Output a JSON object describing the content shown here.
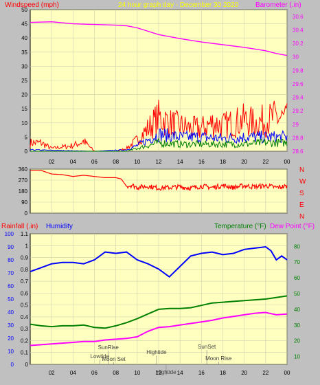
{
  "colors": {
    "page_bg": "#c0c0c0",
    "plot_bg": "#ffffc0",
    "grid": "#cfcfb0",
    "red": "#ff0000",
    "blue": "#0000ff",
    "green": "#008000",
    "magenta": "#ff00ff",
    "yellow": "#ffff00",
    "baro_axis": "#ff00ff"
  },
  "header": {
    "left_label": "Windspeed (mph)",
    "center_label": "24 hour graph day - December 30 2020",
    "right_label": "Barometer (.in)"
  },
  "bottom_header": {
    "rain_label": "Rainfall (.in)",
    "humidity_label": "Humidity",
    "temp_label": "Temperature (°F)",
    "dew_label": "Dew Point (°F)"
  },
  "x_ticks": [
    "02",
    "04",
    "06",
    "08",
    "10",
    "12",
    "14",
    "16",
    "18",
    "20",
    "22",
    "00"
  ],
  "chart_data": [
    {
      "type": "line",
      "name": "wind-barometer",
      "x_hours": [
        0,
        24
      ],
      "y_left": {
        "label": "Windspeed (mph)",
        "range": [
          0,
          50
        ],
        "ticks": [
          0,
          5,
          10,
          15,
          20,
          25,
          30,
          35,
          40,
          45,
          50
        ]
      },
      "y_right": {
        "label": "Barometer (.in)",
        "range": [
          28.6,
          30.7
        ],
        "ticks": [
          "28.6",
          "28.8",
          "29",
          "29.2",
          "29.4",
          "29.6",
          "29.8",
          "30",
          "30.2",
          "30.4",
          "30.6"
        ]
      },
      "series": [
        {
          "name": "Barometer",
          "color": "#ff00ff",
          "axis": "right",
          "points": [
            [
              0,
              30.51
            ],
            [
              2,
              30.52
            ],
            [
              4,
              30.49
            ],
            [
              6,
              30.48
            ],
            [
              8,
              30.47
            ],
            [
              9,
              30.46
            ],
            [
              10,
              30.43
            ],
            [
              12,
              30.33
            ],
            [
              14,
              30.27
            ],
            [
              16,
              30.22
            ],
            [
              18,
              30.18
            ],
            [
              20,
              30.14
            ],
            [
              22,
              30.09
            ],
            [
              23,
              30.05
            ],
            [
              24,
              30.02
            ]
          ]
        },
        {
          "name": "Gust",
          "color": "#ff0000",
          "axis": "left",
          "points": [
            [
              0,
              3
            ],
            [
              1,
              3
            ],
            [
              2,
              1
            ],
            [
              3,
              1.5
            ],
            [
              4,
              2
            ],
            [
              5,
              3.5
            ],
            [
              6,
              0
            ],
            [
              8,
              0
            ],
            [
              9,
              1
            ],
            [
              10,
              4
            ],
            [
              11,
              8
            ],
            [
              12,
              12
            ],
            [
              13,
              10
            ],
            [
              14,
              9
            ],
            [
              15,
              8
            ],
            [
              16,
              8
            ],
            [
              17,
              10
            ],
            [
              18,
              9
            ],
            [
              19,
              10
            ],
            [
              20,
              11
            ],
            [
              21,
              10
            ],
            [
              22,
              11
            ],
            [
              23,
              12
            ],
            [
              24,
              11
            ]
          ]
        },
        {
          "name": "Wind",
          "color": "#0000ff",
          "axis": "left",
          "points": [
            [
              0,
              0.5
            ],
            [
              6,
              0
            ],
            [
              9,
              0.5
            ],
            [
              10,
              2
            ],
            [
              11,
              4
            ],
            [
              12,
              6
            ],
            [
              13,
              5.5
            ],
            [
              14,
              5
            ],
            [
              16,
              5
            ],
            [
              18,
              4.5
            ],
            [
              20,
              5
            ],
            [
              22,
              5
            ],
            [
              24,
              5
            ]
          ]
        },
        {
          "name": "Avg",
          "color": "#008000",
          "axis": "left",
          "points": [
            [
              0,
              0
            ],
            [
              9,
              0
            ],
            [
              10,
              1
            ],
            [
              11,
              2
            ],
            [
              12,
              3
            ],
            [
              14,
              2.5
            ],
            [
              16,
              2.5
            ],
            [
              18,
              2.5
            ],
            [
              20,
              2.5
            ],
            [
              22,
              3
            ],
            [
              24,
              3
            ]
          ]
        }
      ]
    },
    {
      "type": "line",
      "name": "wind-direction",
      "x_hours": [
        0,
        24
      ],
      "y_left": {
        "range": [
          0,
          360
        ],
        "ticks": [
          "0",
          "90",
          "180",
          "270",
          "360"
        ]
      },
      "y_right_labels": [
        "N",
        "W",
        "S",
        "E",
        "N"
      ],
      "series": [
        {
          "name": "Direction",
          "color": "#ff0000",
          "points": [
            [
              0,
              350
            ],
            [
              1,
              350
            ],
            [
              2,
              320
            ],
            [
              3,
              315
            ],
            [
              4,
              300
            ],
            [
              5,
              310
            ],
            [
              6,
              300
            ],
            [
              7,
              290
            ],
            [
              8,
              290
            ],
            [
              8.5,
              280
            ],
            [
              9,
              220
            ],
            [
              9.5,
              230
            ],
            [
              10,
              210
            ],
            [
              11,
              220
            ],
            [
              12,
              205
            ],
            [
              13,
              210
            ],
            [
              14,
              215
            ],
            [
              15,
              205
            ],
            [
              16,
              220
            ],
            [
              17,
              210
            ],
            [
              18,
              225
            ],
            [
              19,
              210
            ],
            [
              20,
              225
            ],
            [
              21,
              215
            ],
            [
              22,
              225
            ],
            [
              23,
              210
            ],
            [
              24,
              220
            ]
          ]
        }
      ]
    },
    {
      "type": "line",
      "name": "humidity-temperature",
      "x_hours": [
        0,
        24
      ],
      "y_far_left": {
        "label": "Humidity",
        "range": [
          0,
          100
        ],
        "ticks": [
          0,
          10,
          20,
          30,
          40,
          50,
          60,
          70,
          80,
          90,
          100
        ]
      },
      "y_left": {
        "label": "Rainfall (.in)",
        "range": [
          0,
          1.1
        ],
        "ticks": [
          "0",
          "0.1",
          "0.2",
          "0.3",
          "0.4",
          "0.5",
          "0.6",
          "0.7",
          "0.8",
          "0.9",
          "1",
          "1.1"
        ]
      },
      "y_right": {
        "label": "Temperature (°F)",
        "range": [
          5,
          88
        ],
        "ticks": [
          10,
          20,
          30,
          40,
          50,
          60,
          70,
          80
        ]
      },
      "series": [
        {
          "name": "Humidity",
          "color": "#0000ff",
          "axis": "far_left",
          "points": [
            [
              0,
              71
            ],
            [
              1,
              74
            ],
            [
              2,
              77
            ],
            [
              3,
              78
            ],
            [
              4,
              78
            ],
            [
              5,
              77
            ],
            [
              6,
              80
            ],
            [
              7,
              86
            ],
            [
              8,
              85
            ],
            [
              9,
              86
            ],
            [
              10,
              80
            ],
            [
              11,
              77
            ],
            [
              12,
              73
            ],
            [
              13,
              67
            ],
            [
              14,
              75
            ],
            [
              15,
              83
            ],
            [
              16,
              85
            ],
            [
              17,
              86
            ],
            [
              18,
              84
            ],
            [
              19,
              85
            ],
            [
              20,
              88
            ],
            [
              21,
              89
            ],
            [
              22,
              90
            ],
            [
              22.5,
              87
            ],
            [
              23,
              80
            ],
            [
              23.5,
              83
            ],
            [
              24,
              80
            ]
          ]
        },
        {
          "name": "Temperature",
          "color": "#008000",
          "axis": "right",
          "points": [
            [
              0,
              30.5
            ],
            [
              1,
              29.5
            ],
            [
              2,
              29
            ],
            [
              3,
              29.5
            ],
            [
              4,
              29.5
            ],
            [
              5,
              30
            ],
            [
              6,
              28.5
            ],
            [
              7,
              28
            ],
            [
              8,
              29.5
            ],
            [
              9,
              31.5
            ],
            [
              10,
              34
            ],
            [
              11,
              37
            ],
            [
              12,
              40
            ],
            [
              13,
              40.5
            ],
            [
              14,
              40.5
            ],
            [
              15,
              41
            ],
            [
              16,
              42.5
            ],
            [
              17,
              44
            ],
            [
              18,
              44.5
            ],
            [
              19,
              45
            ],
            [
              20,
              45.5
            ],
            [
              21,
              46
            ],
            [
              22,
              46.5
            ],
            [
              23,
              47.5
            ],
            [
              24,
              48.5
            ]
          ]
        },
        {
          "name": "Dew Point",
          "color": "#ff00ff",
          "axis": "right",
          "points": [
            [
              0,
              17
            ],
            [
              1,
              17.5
            ],
            [
              2,
              18
            ],
            [
              3,
              18.5
            ],
            [
              4,
              19
            ],
            [
              5,
              19.5
            ],
            [
              6,
              19.5
            ],
            [
              7,
              20.5
            ],
            [
              8,
              21
            ],
            [
              9,
              21.5
            ],
            [
              10,
              22.5
            ],
            [
              11,
              26
            ],
            [
              12,
              28.5
            ],
            [
              13,
              29
            ],
            [
              14,
              30
            ],
            [
              15,
              31
            ],
            [
              16,
              32
            ],
            [
              17,
              33
            ],
            [
              18,
              34.5
            ],
            [
              19,
              35.5
            ],
            [
              20,
              36.5
            ],
            [
              21,
              37.5
            ],
            [
              22,
              38
            ],
            [
              23,
              36.5
            ],
            [
              24,
              37
            ]
          ]
        }
      ],
      "annotations": [
        {
          "label": "SunRise",
          "hour": 7.3
        },
        {
          "label": "Lowtide",
          "hour": 6.5
        },
        {
          "label": "Moon Set",
          "hour": 7.8
        },
        {
          "label": "Hightide",
          "hour": 11.8
        },
        {
          "label": "Hightide",
          "hour": 12.7
        },
        {
          "label": "SunSet",
          "hour": 16.5
        },
        {
          "label": "Moon Rise",
          "hour": 17.6
        }
      ]
    }
  ]
}
